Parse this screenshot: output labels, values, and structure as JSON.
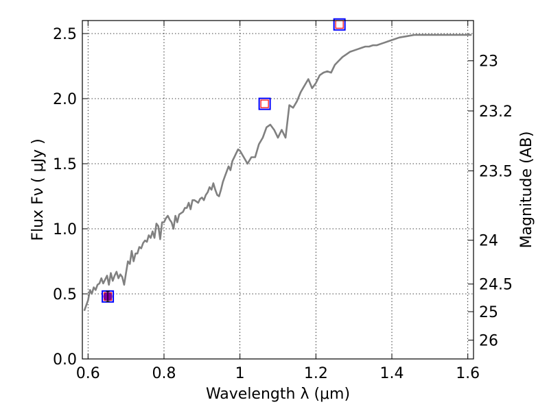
{
  "chart_data": {
    "type": "line",
    "xlabel": "Wavelength  λ (μm)",
    "ylabel": "Flux  Fν  ( μJy )",
    "y2label": "Magnitude (AB)",
    "xlim": [
      0.585,
      1.615
    ],
    "ylim": [
      0.0,
      2.6
    ],
    "grid": true,
    "x_ticks": [
      {
        "value": 0.6,
        "label": "0.6"
      },
      {
        "value": 0.8,
        "label": "0.8"
      },
      {
        "value": 1.0,
        "label": "1"
      },
      {
        "value": 1.2,
        "label": "1.2"
      },
      {
        "value": 1.4,
        "label": "1.4"
      },
      {
        "value": 1.6,
        "label": "1.6"
      }
    ],
    "y_ticks": [
      {
        "value": 0.0,
        "label": "0.0"
      },
      {
        "value": 0.5,
        "label": "0.5"
      },
      {
        "value": 1.0,
        "label": "1.0"
      },
      {
        "value": 1.5,
        "label": "1.5"
      },
      {
        "value": 2.0,
        "label": "2.0"
      },
      {
        "value": 2.5,
        "label": "2.5"
      }
    ],
    "y2_ticks": [
      {
        "value": 23,
        "label": "23"
      },
      {
        "value": 23.2,
        "label": "23.2"
      },
      {
        "value": 23.5,
        "label": "23.5"
      },
      {
        "value": 24,
        "label": "24"
      },
      {
        "value": 24.5,
        "label": "24.5"
      },
      {
        "value": 25,
        "label": "25"
      },
      {
        "value": 26,
        "label": "26"
      }
    ],
    "model_color": "#808080",
    "model_x": [
      0.59,
      0.6,
      0.605,
      0.61,
      0.615,
      0.62,
      0.625,
      0.63,
      0.635,
      0.64,
      0.645,
      0.65,
      0.655,
      0.66,
      0.665,
      0.67,
      0.675,
      0.68,
      0.685,
      0.69,
      0.695,
      0.7,
      0.705,
      0.71,
      0.715,
      0.72,
      0.725,
      0.73,
      0.735,
      0.74,
      0.745,
      0.75,
      0.755,
      0.76,
      0.765,
      0.77,
      0.775,
      0.78,
      0.785,
      0.79,
      0.795,
      0.8,
      0.805,
      0.81,
      0.815,
      0.82,
      0.825,
      0.83,
      0.835,
      0.84,
      0.845,
      0.85,
      0.855,
      0.86,
      0.865,
      0.87,
      0.875,
      0.88,
      0.885,
      0.89,
      0.895,
      0.9,
      0.905,
      0.91,
      0.915,
      0.92,
      0.925,
      0.93,
      0.935,
      0.94,
      0.945,
      0.95,
      0.955,
      0.96,
      0.965,
      0.97,
      0.975,
      0.98,
      0.985,
      0.99,
      0.995,
      1.0,
      1.01,
      1.02,
      1.03,
      1.04,
      1.05,
      1.06,
      1.07,
      1.08,
      1.09,
      1.1,
      1.11,
      1.12,
      1.13,
      1.14,
      1.15,
      1.16,
      1.17,
      1.18,
      1.19,
      1.2,
      1.21,
      1.22,
      1.23,
      1.24,
      1.25,
      1.26,
      1.27,
      1.28,
      1.29,
      1.3,
      1.31,
      1.32,
      1.33,
      1.34,
      1.35,
      1.36,
      1.37,
      1.38,
      1.39,
      1.4,
      1.42,
      1.44,
      1.46,
      1.48,
      1.5,
      1.52,
      1.54,
      1.56,
      1.58,
      1.6,
      1.61
    ],
    "model_y": [
      0.37,
      0.45,
      0.53,
      0.5,
      0.55,
      0.53,
      0.57,
      0.58,
      0.62,
      0.58,
      0.61,
      0.64,
      0.57,
      0.66,
      0.6,
      0.64,
      0.67,
      0.62,
      0.65,
      0.63,
      0.57,
      0.66,
      0.75,
      0.73,
      0.83,
      0.75,
      0.81,
      0.81,
      0.86,
      0.85,
      0.89,
      0.91,
      0.9,
      0.95,
      0.93,
      0.98,
      0.93,
      1.04,
      1.02,
      0.92,
      1.05,
      1.05,
      1.08,
      1.1,
      1.07,
      1.05,
      1.0,
      1.1,
      1.05,
      1.11,
      1.12,
      1.13,
      1.16,
      1.16,
      1.2,
      1.15,
      1.22,
      1.22,
      1.21,
      1.2,
      1.23,
      1.24,
      1.22,
      1.26,
      1.28,
      1.32,
      1.3,
      1.35,
      1.3,
      1.26,
      1.25,
      1.3,
      1.36,
      1.4,
      1.44,
      1.48,
      1.45,
      1.52,
      1.55,
      1.58,
      1.61,
      1.6,
      1.55,
      1.5,
      1.55,
      1.55,
      1.65,
      1.7,
      1.78,
      1.8,
      1.76,
      1.7,
      1.76,
      1.7,
      1.95,
      1.93,
      1.98,
      2.05,
      2.1,
      2.15,
      2.08,
      2.12,
      2.18,
      2.2,
      2.21,
      2.2,
      2.26,
      2.29,
      2.32,
      2.34,
      2.36,
      2.37,
      2.38,
      2.39,
      2.4,
      2.4,
      2.41,
      2.41,
      2.42,
      2.43,
      2.44,
      2.45,
      2.47,
      2.48,
      2.49,
      2.49,
      2.49,
      2.49,
      2.49,
      2.49,
      2.49,
      2.49,
      2.49
    ],
    "observed": [
      {
        "x": 0.652,
        "y": 0.48,
        "err": 0.04
      }
    ],
    "model_photometry": [
      {
        "x": 0.652,
        "y": 0.48
      },
      {
        "x": 1.065,
        "y": 1.96
      },
      {
        "x": 1.262,
        "y": 2.57
      }
    ]
  }
}
